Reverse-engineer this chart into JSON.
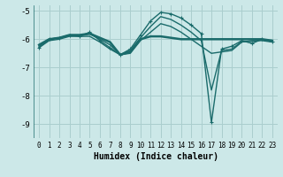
{
  "xlabel": "Humidex (Indice chaleur)",
  "bg_color": "#cce8e8",
  "grid_color": "#aacece",
  "line_color": "#1a6b6b",
  "xlim": [
    -0.5,
    23.5
  ],
  "ylim": [
    -9.5,
    -4.8
  ],
  "yticks": [
    -9,
    -8,
    -7,
    -6,
    -5
  ],
  "xticks": [
    0,
    1,
    2,
    3,
    4,
    5,
    6,
    7,
    8,
    9,
    10,
    11,
    12,
    13,
    14,
    15,
    16,
    17,
    18,
    19,
    20,
    21,
    22,
    23
  ],
  "lines": [
    {
      "x": [
        0,
        1,
        2,
        3,
        4,
        5,
        6,
        7,
        8,
        9,
        10,
        11,
        12,
        13,
        14,
        15,
        16,
        17,
        18,
        19,
        20,
        21,
        22,
        23
      ],
      "y": [
        -6.2,
        -6.0,
        -5.95,
        -5.85,
        -5.85,
        -5.8,
        -5.95,
        -6.1,
        -6.55,
        -6.45,
        -6.0,
        -5.9,
        -5.9,
        -5.95,
        -6.0,
        -6.0,
        -6.0,
        -6.0,
        -6.0,
        -6.0,
        -6.0,
        -6.0,
        -6.0,
        -6.05
      ],
      "marker": null,
      "lw": 1.8
    },
    {
      "x": [
        0,
        1,
        2,
        3,
        4,
        5,
        6,
        7,
        8,
        9,
        10,
        11,
        12,
        13,
        14,
        15,
        16,
        17,
        18,
        19,
        20,
        21,
        22,
        23
      ],
      "y": [
        -6.3,
        -6.0,
        -5.95,
        -5.85,
        -5.9,
        -5.75,
        -6.05,
        -6.3,
        -6.55,
        -6.35,
        -5.85,
        -5.35,
        -5.05,
        -5.1,
        -5.25,
        -5.5,
        -5.8,
        -8.95,
        -6.35,
        -6.25,
        -6.05,
        -6.15,
        -6.0,
        -6.1
      ],
      "marker": "+",
      "lw": 1.0
    },
    {
      "x": [
        0,
        1,
        2,
        3,
        4,
        5,
        6,
        7,
        8,
        9,
        10,
        11,
        12,
        13,
        14,
        15,
        16,
        17,
        18,
        19,
        20,
        21,
        22,
        23
      ],
      "y": [
        -6.3,
        -6.05,
        -6.0,
        -5.9,
        -5.9,
        -5.9,
        -6.1,
        -6.35,
        -6.55,
        -6.5,
        -6.05,
        -5.75,
        -5.45,
        -5.55,
        -5.75,
        -6.0,
        -6.25,
        -6.5,
        -6.45,
        -6.4,
        -6.1,
        -6.05,
        -6.05,
        -6.1
      ],
      "marker": null,
      "lw": 1.0
    },
    {
      "x": [
        0,
        1,
        2,
        3,
        4,
        5,
        6,
        7,
        8,
        9,
        10,
        11,
        12,
        13,
        14,
        15,
        16,
        17,
        18,
        19,
        20,
        21,
        22,
        23
      ],
      "y": [
        -6.25,
        -6.0,
        -5.95,
        -5.88,
        -5.88,
        -5.82,
        -6.0,
        -6.2,
        -6.55,
        -6.4,
        -5.95,
        -5.55,
        -5.2,
        -5.3,
        -5.5,
        -5.75,
        -6.05,
        -7.8,
        -6.4,
        -6.35,
        -6.08,
        -6.08,
        -6.02,
        -6.08
      ],
      "marker": null,
      "lw": 1.0
    }
  ]
}
